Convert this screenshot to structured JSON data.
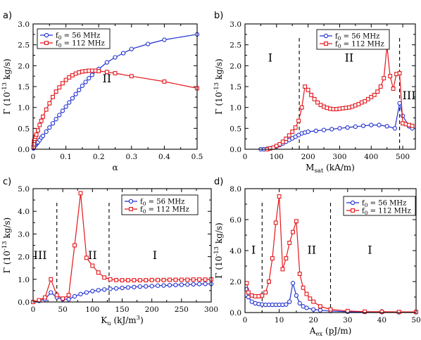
{
  "figure": {
    "colors": {
      "blue": "#1f2fd0",
      "red": "#e5161b",
      "axis": "#000000"
    }
  },
  "chart_data": [
    {
      "type": "line",
      "panel": "a)",
      "xlabel": "α",
      "ylabel": "Γ (10⁻¹³ kg/s)",
      "xlim": [
        0,
        0.5
      ],
      "ylim": [
        0,
        3.0
      ],
      "xticks": [
        0,
        0.1,
        0.2,
        0.3,
        0.4,
        0.5
      ],
      "xtick_labels": [
        "0",
        "0.1",
        "0.2",
        "0.3",
        "0.4",
        "0.5"
      ],
      "yticks": [
        0,
        0.5,
        1,
        1.5,
        2,
        2.5,
        3
      ],
      "ytick_labels": [
        "0.0",
        "0.5",
        "1.0",
        "1.5",
        "2.0",
        "2.5",
        "3.0"
      ],
      "legend": {
        "position": "top-left",
        "entries": [
          "f₀ = 56 MHz",
          "f₀ = 112 MHz"
        ]
      },
      "regions": [
        {
          "label": "II",
          "x": 0.225,
          "y": 1.6
        }
      ],
      "vlines": [],
      "series": [
        {
          "name": "f₀ = 56 MHz",
          "color": "blue",
          "marker": "circle",
          "x": [
            0.001,
            0.002,
            0.003,
            0.005,
            0.0075,
            0.01,
            0.0125,
            0.015,
            0.02,
            0.025,
            0.03,
            0.04,
            0.05,
            0.06,
            0.07,
            0.08,
            0.09,
            0.1,
            0.11,
            0.12,
            0.13,
            0.14,
            0.15,
            0.16,
            0.17,
            0.18,
            0.2,
            0.225,
            0.25,
            0.275,
            0.3,
            0.35,
            0.4,
            0.5
          ],
          "y": [
            0.02,
            0.03,
            0.05,
            0.08,
            0.1,
            0.13,
            0.15,
            0.17,
            0.22,
            0.28,
            0.32,
            0.42,
            0.52,
            0.62,
            0.72,
            0.82,
            0.92,
            1.02,
            1.12,
            1.22,
            1.32,
            1.42,
            1.52,
            1.61,
            1.7,
            1.78,
            1.92,
            2.08,
            2.2,
            2.3,
            2.4,
            2.52,
            2.62,
            2.75
          ]
        },
        {
          "name": "f₀ = 112 MHz",
          "color": "red",
          "marker": "square",
          "x": [
            0.001,
            0.002,
            0.003,
            0.005,
            0.0075,
            0.01,
            0.015,
            0.02,
            0.025,
            0.03,
            0.04,
            0.05,
            0.06,
            0.07,
            0.08,
            0.09,
            0.1,
            0.11,
            0.12,
            0.13,
            0.14,
            0.15,
            0.16,
            0.17,
            0.18,
            0.19,
            0.2,
            0.225,
            0.25,
            0.3,
            0.4,
            0.5
          ],
          "y": [
            0.05,
            0.12,
            0.2,
            0.25,
            0.3,
            0.35,
            0.45,
            0.58,
            0.68,
            0.78,
            0.95,
            1.1,
            1.25,
            1.38,
            1.48,
            1.58,
            1.66,
            1.72,
            1.77,
            1.81,
            1.84,
            1.86,
            1.87,
            1.88,
            1.88,
            1.88,
            1.87,
            1.85,
            1.82,
            1.75,
            1.62,
            1.46
          ]
        }
      ]
    },
    {
      "type": "line",
      "panel": "b)",
      "xlabel": "Msat (kA/m)",
      "xlabel_main": "M",
      "xlabel_sub": "sat",
      "xlabel_rest": " (kA/m)",
      "ylabel": "Γ (10⁻¹³ kg/s)",
      "xlim": [
        0,
        540
      ],
      "ylim": [
        0,
        3.0
      ],
      "xticks": [
        0,
        100,
        200,
        300,
        400,
        500
      ],
      "xtick_labels": [
        "0",
        "100",
        "200",
        "300",
        "400",
        "500"
      ],
      "yticks": [
        0,
        0.5,
        1,
        1.5,
        2,
        2.5,
        3
      ],
      "ytick_labels": [
        "0.0",
        "0.5",
        "1.0",
        "1.5",
        "2.0",
        "2.5",
        "3.0"
      ],
      "legend": {
        "position": "top",
        "entries": [
          "f₀ = 56 MHz",
          "f₀ = 112 MHz"
        ]
      },
      "regions": [
        {
          "label": "I",
          "x": 80,
          "y": 2.1
        },
        {
          "label": "II",
          "x": 330,
          "y": 2.1
        },
        {
          "label": "III",
          "x": 520,
          "y": 1.2
        }
      ],
      "vlines": [
        172,
        490
      ],
      "series": [
        {
          "name": "f₀ = 56 MHz",
          "color": "blue",
          "marker": "circle",
          "x": [
            50,
            60,
            70,
            80,
            90,
            100,
            110,
            120,
            130,
            140,
            150,
            160,
            170,
            180,
            190,
            200,
            225,
            250,
            275,
            300,
            325,
            350,
            375,
            400,
            425,
            450,
            475,
            490,
            500,
            520,
            530
          ],
          "y": [
            0.0,
            0.0,
            0.01,
            0.02,
            0.04,
            0.07,
            0.1,
            0.14,
            0.18,
            0.22,
            0.26,
            0.3,
            0.34,
            0.38,
            0.4,
            0.42,
            0.44,
            0.46,
            0.48,
            0.5,
            0.52,
            0.54,
            0.56,
            0.58,
            0.58,
            0.55,
            0.5,
            1.1,
            0.8,
            0.55,
            0.5
          ]
        },
        {
          "name": "f₀ = 112 MHz",
          "color": "red",
          "marker": "square",
          "x": [
            70,
            80,
            90,
            100,
            110,
            120,
            130,
            140,
            150,
            160,
            170,
            180,
            190,
            200,
            210,
            220,
            230,
            240,
            250,
            260,
            270,
            280,
            290,
            300,
            310,
            320,
            330,
            340,
            350,
            360,
            370,
            380,
            390,
            400,
            410,
            420,
            430,
            440,
            450,
            460,
            470,
            480,
            490,
            500,
            510,
            520,
            530
          ],
          "y": [
            0.0,
            0.02,
            0.04,
            0.08,
            0.12,
            0.18,
            0.25,
            0.33,
            0.42,
            0.52,
            0.68,
            1.0,
            1.5,
            1.42,
            1.3,
            1.2,
            1.12,
            1.06,
            1.02,
            0.99,
            0.97,
            0.96,
            0.96,
            0.97,
            0.98,
            0.99,
            1.0,
            1.02,
            1.05,
            1.08,
            1.12,
            1.15,
            1.2,
            1.25,
            1.3,
            1.38,
            1.5,
            1.7,
            2.47,
            1.75,
            1.45,
            1.8,
            1.82,
            0.62,
            0.6,
            0.58,
            0.56
          ]
        }
      ]
    },
    {
      "type": "line",
      "panel": "c)",
      "xlabel": "Ku (kJ/m3)",
      "xlabel_main": "K",
      "xlabel_sub": "u",
      "xlabel_rest": " (kJ/m",
      "xlabel_sup": "3",
      "xlabel_end": ")",
      "ylabel": "Γ (10⁻¹³ kg/s)",
      "xlim": [
        0,
        300
      ],
      "ylim": [
        0,
        5.0
      ],
      "xticks": [
        0,
        50,
        100,
        150,
        200,
        250,
        300
      ],
      "xtick_labels": [
        "0",
        "50",
        "100",
        "150",
        "200",
        "250",
        "300"
      ],
      "yticks": [
        0,
        1,
        2,
        3,
        4,
        5
      ],
      "ytick_labels": [
        "0.0",
        "1.0",
        "2.0",
        "3.0",
        "4.0",
        "5.0"
      ],
      "legend": {
        "position": "top-right",
        "entries": [
          "f₀ = 56 MHz",
          "f₀ = 112 MHz"
        ]
      },
      "regions": [
        {
          "label": "III",
          "x": 12,
          "y": 1.9
        },
        {
          "label": "II",
          "x": 100,
          "y": 1.9
        },
        {
          "label": "I",
          "x": 205,
          "y": 1.9
        }
      ],
      "vlines": [
        40,
        128
      ],
      "series": [
        {
          "name": "f₀ = 56 MHz",
          "color": "blue",
          "marker": "circle",
          "x": [
            0,
            10,
            20,
            30,
            40,
            50,
            60,
            70,
            80,
            90,
            100,
            110,
            120,
            130,
            140,
            150,
            160,
            170,
            180,
            190,
            200,
            210,
            220,
            230,
            240,
            250,
            260,
            270,
            280,
            290,
            300
          ],
          "y": [
            0.0,
            0.05,
            0.12,
            0.42,
            0.2,
            0.12,
            0.12,
            0.25,
            0.35,
            0.42,
            0.48,
            0.52,
            0.55,
            0.58,
            0.6,
            0.62,
            0.64,
            0.66,
            0.68,
            0.69,
            0.7,
            0.72,
            0.73,
            0.74,
            0.75,
            0.76,
            0.77,
            0.78,
            0.79,
            0.8,
            0.8
          ]
        },
        {
          "name": "f₀ = 112 MHz",
          "color": "red",
          "marker": "square",
          "x": [
            0,
            10,
            20,
            30,
            40,
            50,
            60,
            70,
            80,
            90,
            100,
            110,
            120,
            130,
            140,
            150,
            160,
            170,
            180,
            190,
            200,
            210,
            220,
            230,
            240,
            250,
            260,
            270,
            280,
            290,
            300
          ],
          "y": [
            0.0,
            0.08,
            0.2,
            1.0,
            0.3,
            0.15,
            0.3,
            2.5,
            4.8,
            1.95,
            1.6,
            1.3,
            1.08,
            1.0,
            0.97,
            0.96,
            0.96,
            0.96,
            0.96,
            0.96,
            0.97,
            0.97,
            0.97,
            0.98,
            0.98,
            0.98,
            0.98,
            0.99,
            0.99,
            0.99,
            1.0
          ]
        }
      ]
    },
    {
      "type": "line",
      "panel": "d)",
      "xlabel": "Aex (pJ/m)",
      "xlabel_main": "A",
      "xlabel_sub": "ex",
      "xlabel_rest": " (pJ/m)",
      "ylabel": "Γ (10⁻¹³ kg/s)",
      "xlim": [
        0,
        50
      ],
      "ylim": [
        0,
        8.0
      ],
      "xticks": [
        0,
        10,
        20,
        30,
        40,
        50
      ],
      "xtick_labels": [
        "0",
        "10",
        "20",
        "30",
        "40",
        "50"
      ],
      "yticks": [
        0,
        2,
        4,
        6,
        8
      ],
      "ytick_labels": [
        "0.0",
        "2.0",
        "4.0",
        "6.0",
        "8.0"
      ],
      "legend": {
        "position": "top-right",
        "entries": [
          "f₀ = 56 MHz",
          "f₀ = 112 MHz"
        ]
      },
      "regions": [
        {
          "label": "I",
          "x": 2.5,
          "y": 3.8
        },
        {
          "label": "II",
          "x": 19.5,
          "y": 3.8
        },
        {
          "label": "I",
          "x": 36.5,
          "y": 3.8
        }
      ],
      "vlines": [
        5,
        25
      ],
      "series": [
        {
          "name": "f₀ = 56 MHz",
          "color": "blue",
          "marker": "circle",
          "x": [
            0.5,
            1,
            2,
            3,
            4,
            5,
            6,
            7,
            8,
            9,
            10,
            11,
            12,
            13,
            14,
            15,
            16,
            17,
            18,
            20,
            22,
            25,
            30,
            35,
            40,
            45,
            50
          ],
          "y": [
            1.5,
            1.0,
            0.7,
            0.6,
            0.55,
            0.52,
            0.5,
            0.5,
            0.5,
            0.5,
            0.5,
            0.5,
            0.52,
            0.7,
            1.9,
            1.1,
            0.6,
            0.4,
            0.3,
            0.2,
            0.15,
            0.1,
            0.05,
            0.04,
            0.03,
            0.02,
            0.02
          ]
        },
        {
          "name": "f₀ = 112 MHz",
          "color": "red",
          "marker": "square",
          "x": [
            0.5,
            1,
            2,
            3,
            4,
            5,
            6,
            7,
            8,
            9,
            10,
            11,
            12,
            13,
            14,
            15,
            16,
            17,
            18,
            19,
            20,
            22,
            25,
            30,
            35,
            40,
            45,
            50
          ],
          "y": [
            1.9,
            1.3,
            1.1,
            1.05,
            1.05,
            1.1,
            1.3,
            2.0,
            3.5,
            5.8,
            7.5,
            2.8,
            3.5,
            4.5,
            5.2,
            5.9,
            2.5,
            1.6,
            1.2,
            0.9,
            0.7,
            0.4,
            0.2,
            0.1,
            0.06,
            0.05,
            0.04,
            0.04
          ]
        }
      ]
    }
  ]
}
